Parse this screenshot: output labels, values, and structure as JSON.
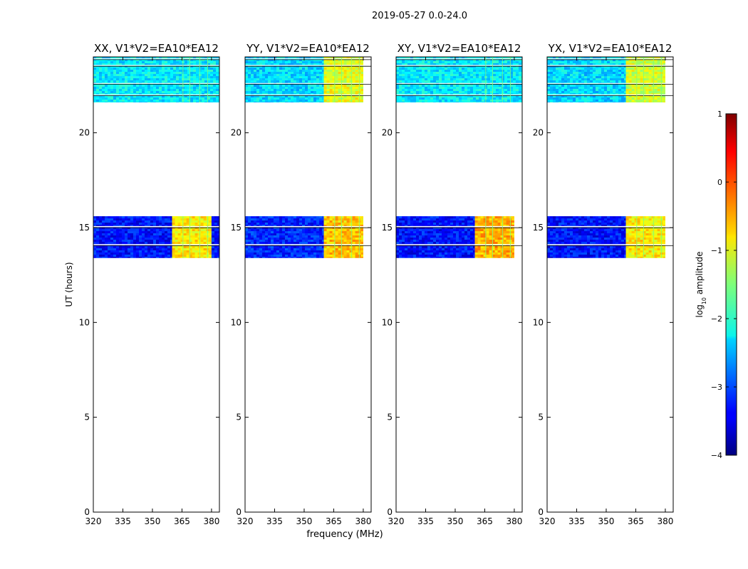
{
  "figure": {
    "suptitle": "2019-05-27 0.0-24.0",
    "shared_xlabel": "frequency (MHz)"
  },
  "chart_data": [
    {
      "type": "heatmap",
      "title": "XX, V1*V2=EA10*EA12",
      "xlabel": "",
      "ylabel": "UT (hours)",
      "xlim": [
        320,
        384
      ],
      "ylim": [
        0,
        24
      ],
      "xticks": [
        320,
        335,
        350,
        365,
        380
      ],
      "yticks": [
        0,
        5,
        10,
        15,
        20
      ],
      "data_blocks": [
        {
          "ut_range": [
            21.6,
            24.0
          ],
          "freq_range": [
            320,
            384
          ],
          "log10_amplitude": -2.2,
          "description": "mostly cyan/light blue noise"
        },
        {
          "ut_range": [
            13.4,
            15.6
          ],
          "freq_range": [
            320,
            360
          ],
          "log10_amplitude": -3.3,
          "description": "dark blue"
        },
        {
          "ut_range": [
            13.4,
            15.6
          ],
          "freq_range": [
            360,
            380
          ],
          "log10_amplitude": -0.8,
          "description": "yellow with orange patches up to ~0"
        },
        {
          "ut_range": [
            13.4,
            15.6
          ],
          "freq_range": [
            380,
            384
          ],
          "log10_amplitude": -3.3,
          "description": "dark blue"
        }
      ]
    },
    {
      "type": "heatmap",
      "title": "YY, V1*V2=EA10*EA12",
      "xlabel": "frequency (MHz)",
      "ylabel": "",
      "xlim": [
        320,
        384
      ],
      "ylim": [
        0,
        24
      ],
      "xticks": [
        320,
        335,
        350,
        365,
        380
      ],
      "yticks": [
        0,
        5,
        10,
        15,
        20
      ],
      "data_blocks": [
        {
          "ut_range": [
            21.6,
            24.0
          ],
          "freq_range": [
            320,
            360
          ],
          "log10_amplitude": -2.3,
          "description": "cyan/blue noise"
        },
        {
          "ut_range": [
            21.6,
            24.0
          ],
          "freq_range": [
            360,
            380
          ],
          "log10_amplitude": -1.0,
          "description": "yellow-green"
        },
        {
          "ut_range": [
            13.4,
            15.6
          ],
          "freq_range": [
            320,
            360
          ],
          "log10_amplitude": -3.2,
          "description": "dark blue"
        },
        {
          "ut_range": [
            13.4,
            15.6
          ],
          "freq_range": [
            360,
            380
          ],
          "log10_amplitude": -0.6,
          "description": "yellow with orange patches"
        }
      ]
    },
    {
      "type": "heatmap",
      "title": "XY, V1*V2=EA10*EA12",
      "xlabel": "",
      "ylabel": "",
      "xlim": [
        320,
        384
      ],
      "ylim": [
        0,
        24
      ],
      "xticks": [
        320,
        335,
        350,
        365,
        380
      ],
      "yticks": [
        0,
        5,
        10,
        15,
        20
      ],
      "data_blocks": [
        {
          "ut_range": [
            21.6,
            24.0
          ],
          "freq_range": [
            320,
            384
          ],
          "log10_amplitude": -2.2,
          "description": "cyan/light blue noise"
        },
        {
          "ut_range": [
            13.4,
            15.6
          ],
          "freq_range": [
            320,
            360
          ],
          "log10_amplitude": -3.3,
          "description": "dark blue"
        },
        {
          "ut_range": [
            13.4,
            15.6
          ],
          "freq_range": [
            360,
            380
          ],
          "log10_amplitude": -0.5,
          "description": "yellow/orange"
        }
      ]
    },
    {
      "type": "heatmap",
      "title": "YX, V1*V2=EA10*EA12",
      "xlabel": "",
      "ylabel": "",
      "xlim": [
        320,
        384
      ],
      "ylim": [
        0,
        24
      ],
      "xticks": [
        320,
        335,
        350,
        365,
        380
      ],
      "yticks": [
        0,
        5,
        10,
        15,
        20
      ],
      "data_blocks": [
        {
          "ut_range": [
            21.6,
            24.0
          ],
          "freq_range": [
            320,
            360
          ],
          "log10_amplitude": -2.3,
          "description": "cyan/blue noise"
        },
        {
          "ut_range": [
            21.6,
            24.0
          ],
          "freq_range": [
            360,
            380
          ],
          "log10_amplitude": -1.1,
          "description": "yellow-green"
        },
        {
          "ut_range": [
            13.4,
            15.6
          ],
          "freq_range": [
            320,
            360
          ],
          "log10_amplitude": -3.3,
          "description": "dark blue"
        },
        {
          "ut_range": [
            13.4,
            15.6
          ],
          "freq_range": [
            360,
            380
          ],
          "log10_amplitude": -0.8,
          "description": "yellow with orange patches"
        }
      ]
    }
  ],
  "colorbar": {
    "label": "log",
    "label_sub": "10",
    "label_rest": " amplitude",
    "range": [
      -4,
      1
    ],
    "ticks": [
      1,
      0,
      -1,
      -2,
      -3,
      -4
    ],
    "tick_labels": [
      "1",
      "0",
      "−1",
      "−2",
      "−3",
      "−4"
    ],
    "colormap": "jet"
  }
}
